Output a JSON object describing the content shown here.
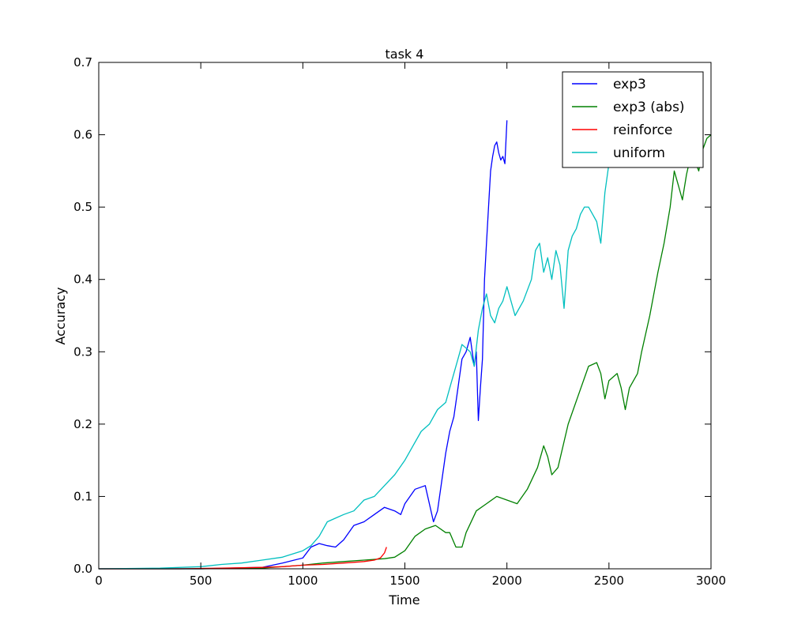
{
  "chart_data": {
    "type": "line",
    "title": "task 4",
    "xlabel": "Time",
    "ylabel": "Accuracy",
    "xlim": [
      0,
      3000
    ],
    "ylim": [
      0,
      0.7
    ],
    "xticks": [
      0,
      500,
      1000,
      1500,
      2000,
      2500,
      3000
    ],
    "yticks": [
      0.0,
      0.1,
      0.2,
      0.3,
      0.4,
      0.5,
      0.6,
      0.7
    ],
    "xtick_labels": [
      "0",
      "500",
      "1000",
      "1500",
      "2000",
      "2500",
      "3000"
    ],
    "ytick_labels": [
      "0.0",
      "0.1",
      "0.2",
      "0.3",
      "0.4",
      "0.5",
      "0.6",
      "0.7"
    ],
    "grid": false,
    "legend_position": "top-right",
    "series": [
      {
        "name": "exp3",
        "color": "#0000ff",
        "x": [
          0,
          500,
          800,
          900,
          1000,
          1040,
          1080,
          1120,
          1160,
          1200,
          1250,
          1300,
          1350,
          1400,
          1450,
          1480,
          1500,
          1550,
          1600,
          1620,
          1640,
          1660,
          1680,
          1700,
          1720,
          1740,
          1760,
          1780,
          1800,
          1820,
          1840,
          1850,
          1860,
          1870,
          1880,
          1890,
          1900,
          1910,
          1920,
          1930,
          1940,
          1950,
          1960,
          1970,
          1980,
          1990,
          1995,
          2000
        ],
        "y": [
          0.0,
          0.0,
          0.002,
          0.008,
          0.015,
          0.03,
          0.035,
          0.032,
          0.03,
          0.04,
          0.06,
          0.065,
          0.075,
          0.085,
          0.08,
          0.075,
          0.09,
          0.11,
          0.115,
          0.09,
          0.065,
          0.08,
          0.12,
          0.16,
          0.19,
          0.21,
          0.25,
          0.29,
          0.3,
          0.32,
          0.28,
          0.3,
          0.205,
          0.25,
          0.29,
          0.4,
          0.45,
          0.5,
          0.55,
          0.57,
          0.585,
          0.59,
          0.575,
          0.565,
          0.57,
          0.56,
          0.59,
          0.62
        ]
      },
      {
        "name": "exp3 (abs)",
        "color": "#008000",
        "x": [
          0,
          500,
          800,
          1000,
          1100,
          1200,
          1300,
          1400,
          1450,
          1500,
          1550,
          1600,
          1650,
          1700,
          1720,
          1750,
          1780,
          1800,
          1850,
          1900,
          1950,
          2000,
          2050,
          2100,
          2150,
          2180,
          2200,
          2220,
          2250,
          2300,
          2350,
          2400,
          2440,
          2460,
          2480,
          2500,
          2540,
          2560,
          2580,
          2600,
          2640,
          2660,
          2700,
          2740,
          2770,
          2800,
          2820,
          2840,
          2860,
          2880,
          2900,
          2920,
          2940,
          2960,
          2980,
          3000
        ],
        "y": [
          0.0,
          0.0,
          0.001,
          0.005,
          0.008,
          0.01,
          0.012,
          0.014,
          0.016,
          0.025,
          0.045,
          0.055,
          0.06,
          0.05,
          0.05,
          0.03,
          0.03,
          0.05,
          0.08,
          0.09,
          0.1,
          0.095,
          0.09,
          0.11,
          0.14,
          0.17,
          0.155,
          0.13,
          0.14,
          0.2,
          0.24,
          0.28,
          0.285,
          0.27,
          0.235,
          0.26,
          0.27,
          0.25,
          0.22,
          0.25,
          0.27,
          0.3,
          0.35,
          0.41,
          0.45,
          0.5,
          0.55,
          0.53,
          0.51,
          0.545,
          0.57,
          0.565,
          0.55,
          0.58,
          0.595,
          0.6
        ]
      },
      {
        "name": "reinforce",
        "color": "#ff0000",
        "x": [
          0,
          400,
          600,
          800,
          900,
          1000,
          1100,
          1200,
          1250,
          1300,
          1350,
          1380,
          1400,
          1410
        ],
        "y": [
          0.0,
          0.0,
          0.001,
          0.002,
          0.003,
          0.005,
          0.006,
          0.008,
          0.009,
          0.01,
          0.012,
          0.015,
          0.022,
          0.03
        ]
      },
      {
        "name": "uniform",
        "color": "#00bfbf",
        "x": [
          0,
          300,
          500,
          600,
          700,
          800,
          900,
          1000,
          1040,
          1080,
          1120,
          1160,
          1200,
          1250,
          1300,
          1350,
          1400,
          1450,
          1500,
          1540,
          1580,
          1620,
          1660,
          1700,
          1720,
          1740,
          1760,
          1780,
          1800,
          1820,
          1840,
          1860,
          1880,
          1900,
          1920,
          1940,
          1960,
          1980,
          2000,
          2040,
          2080,
          2120,
          2140,
          2160,
          2180,
          2200,
          2220,
          2240,
          2260,
          2280,
          2300,
          2320,
          2340,
          2360,
          2380,
          2400,
          2420,
          2440,
          2460,
          2480,
          2500
        ],
        "y": [
          0.0,
          0.001,
          0.003,
          0.006,
          0.008,
          0.012,
          0.016,
          0.025,
          0.032,
          0.045,
          0.065,
          0.07,
          0.075,
          0.08,
          0.095,
          0.1,
          0.115,
          0.13,
          0.15,
          0.17,
          0.19,
          0.2,
          0.22,
          0.23,
          0.25,
          0.27,
          0.29,
          0.31,
          0.305,
          0.3,
          0.28,
          0.33,
          0.36,
          0.38,
          0.35,
          0.34,
          0.36,
          0.37,
          0.39,
          0.35,
          0.37,
          0.4,
          0.44,
          0.45,
          0.41,
          0.43,
          0.4,
          0.44,
          0.42,
          0.36,
          0.44,
          0.46,
          0.47,
          0.49,
          0.5,
          0.5,
          0.49,
          0.48,
          0.45,
          0.52,
          0.56
        ]
      }
    ]
  }
}
